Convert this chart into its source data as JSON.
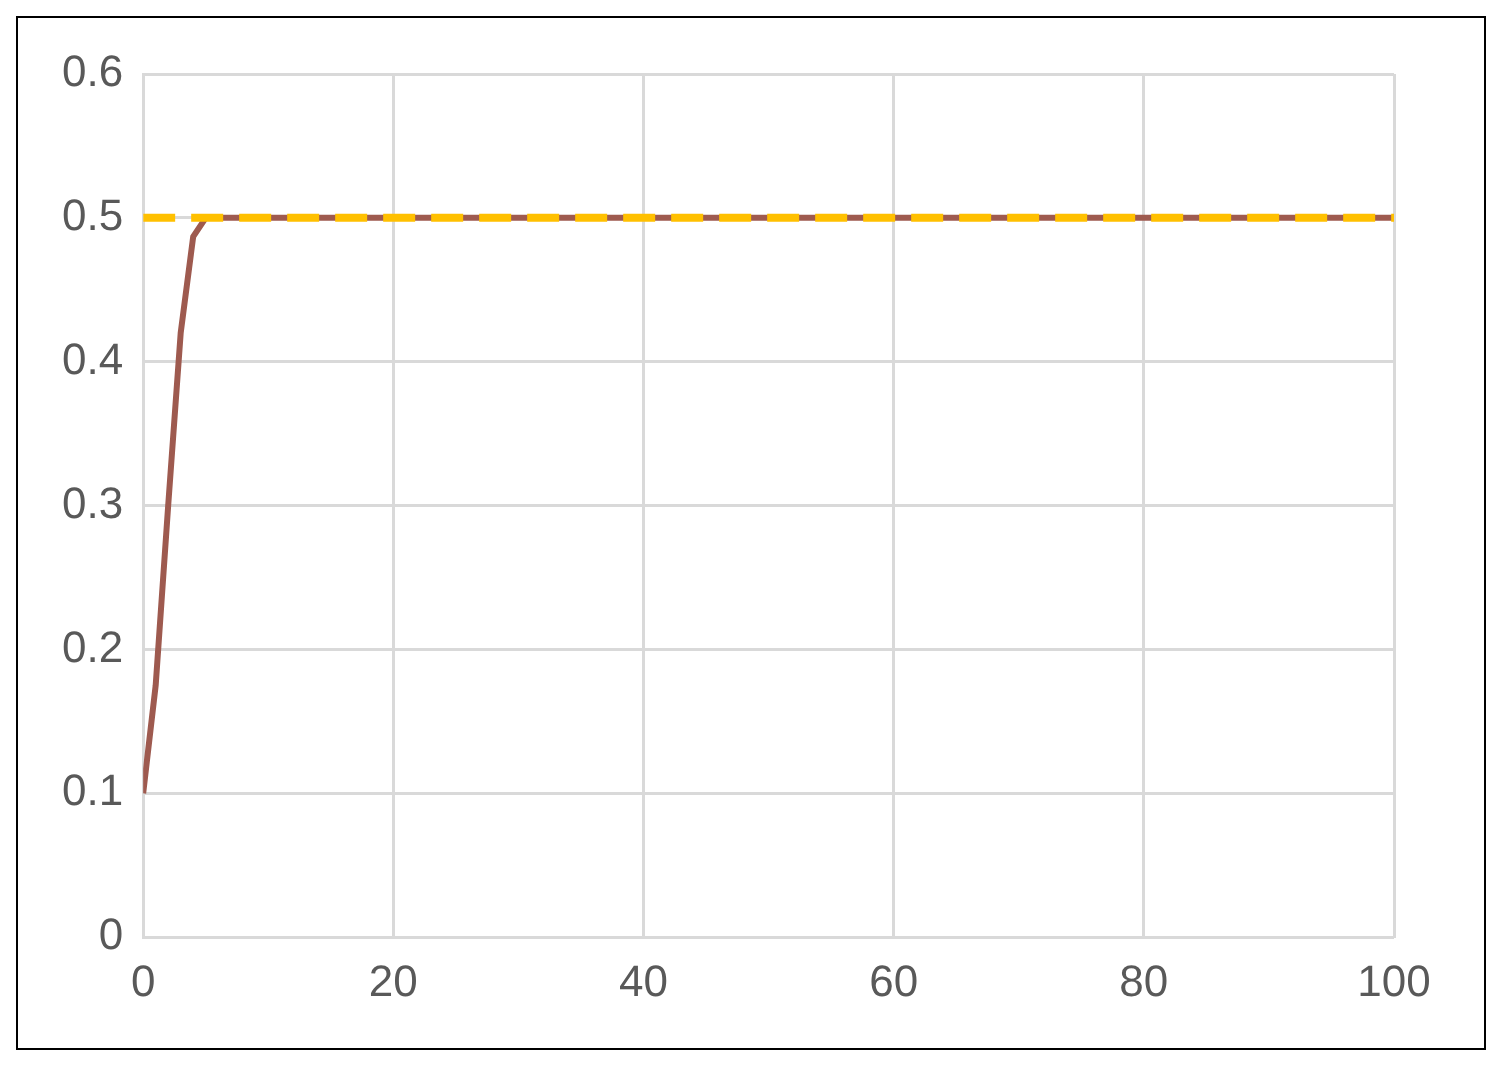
{
  "chart_data": {
    "type": "line",
    "xlim": [
      0,
      100
    ],
    "xticks": [
      0,
      20,
      40,
      60,
      80,
      100
    ],
    "ylim": [
      0,
      0.6
    ],
    "yticks": [
      0,
      0.1,
      0.2,
      0.3,
      0.4,
      0.5,
      0.6
    ],
    "grid": true,
    "legend": false,
    "marker": "none",
    "series": [
      {
        "color": "#ffc000",
        "line_style": "dashed",
        "x": [
          0,
          100
        ],
        "values": [
          0.5,
          0.5
        ]
      },
      {
        "color": "#9e5a4f",
        "line_style": "solid",
        "x": [
          0,
          1,
          2,
          3,
          4,
          5,
          10,
          100
        ],
        "values": [
          0.1,
          0.175,
          0.3,
          0.42,
          0.487,
          0.5,
          0.5,
          0.5
        ]
      }
    ]
  }
}
